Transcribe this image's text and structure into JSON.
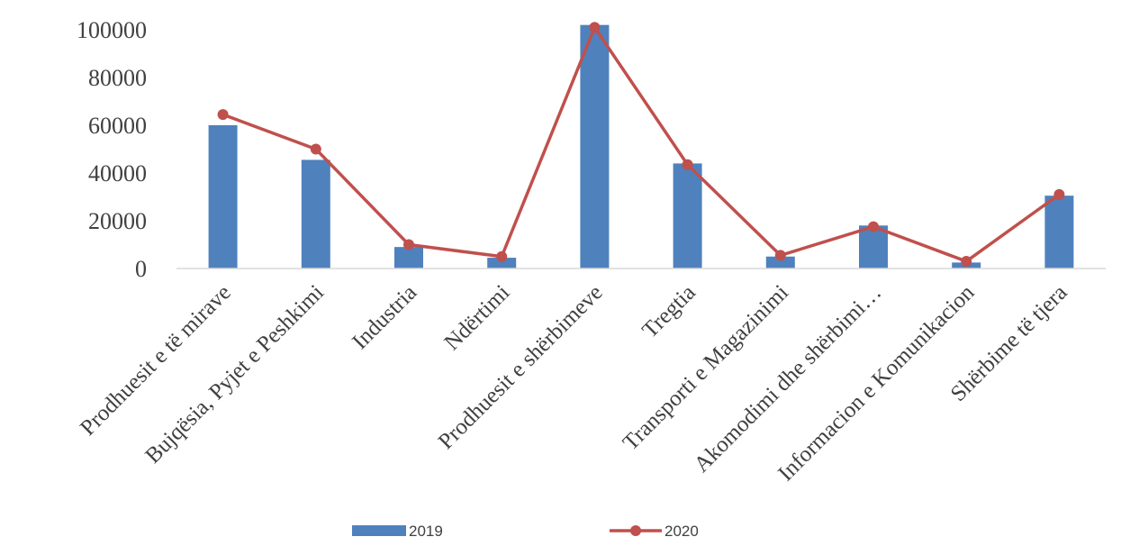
{
  "chart_data": {
    "type": "bar",
    "title": "",
    "xlabel": "",
    "ylabel": "",
    "ylim": [
      0,
      100000
    ],
    "yticks": [
      0,
      20000,
      40000,
      60000,
      80000,
      100000
    ],
    "grid": false,
    "legend_position": "bottom",
    "categories": [
      "Prodhuesit e të mirave",
      "Bujqësia, Pyjet e Peshkimi",
      "Industria",
      "Ndërtimi",
      "Prodhuesit e shërbimeve",
      "Tregtia",
      "Transporti e Magazinimi",
      "Akomodimi dhe shërbimi…",
      "Informacion e Komunikacion",
      "Shërbime të tjera"
    ],
    "series": [
      {
        "name": "2019",
        "type": "bar",
        "color": "#4f81bd",
        "values": [
          60000,
          45500,
          9000,
          4500,
          102000,
          44000,
          5000,
          18000,
          2500,
          30500
        ]
      },
      {
        "name": "2020",
        "type": "line",
        "color": "#c0504d",
        "values": [
          64500,
          50000,
          10000,
          5000,
          101000,
          43500,
          5500,
          17500,
          3000,
          31000
        ]
      }
    ]
  }
}
